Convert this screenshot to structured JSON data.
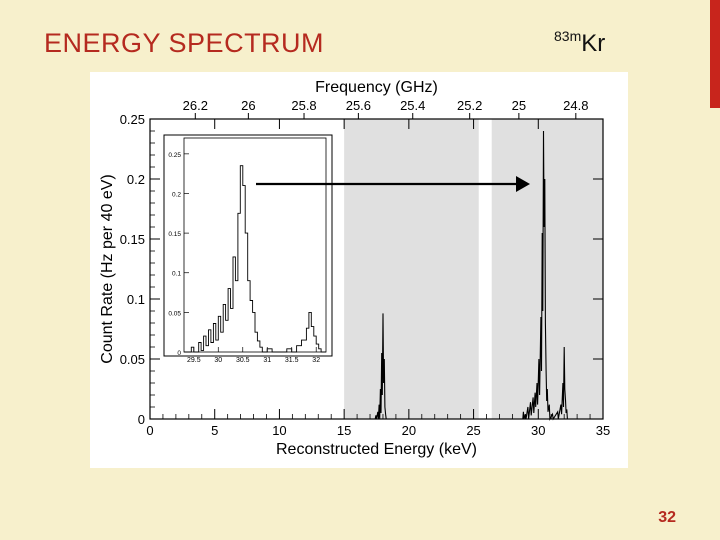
{
  "slide": {
    "title": "ENERGY SPECTRUM",
    "isotope_mass": "83m",
    "isotope_symbol": "Kr",
    "page_number": "32"
  },
  "colors": {
    "background": "#f7f0cc",
    "accent": "#c8251c",
    "title": "#b52a1f",
    "page_number": "#b52a1f",
    "shaded_band": "#e0e0e0",
    "plot_line": "#000000"
  },
  "chart_data": [
    {
      "type": "line",
      "title": "",
      "xlabel": "Reconstructed Energy (keV)",
      "ylabel": "Count Rate (Hz per 40 eV)",
      "top_axis_label": "Frequency (GHz)",
      "xlim": [
        0,
        35
      ],
      "ylim": [
        0,
        0.25
      ],
      "x_ticks": [
        0,
        5,
        10,
        15,
        20,
        25,
        30,
        35
      ],
      "y_ticks": [
        0,
        0.05,
        0.1,
        0.15,
        0.2,
        0.25
      ],
      "x_tick_labels": [
        "0",
        "5",
        "10",
        "15",
        "20",
        "25",
        "30",
        "35"
      ],
      "y_tick_labels": [
        "0",
        "0.05",
        "0.1",
        "0.15",
        "0.2",
        "0.25"
      ],
      "top_ticks": [
        {
          "label": "26.2",
          "energy": 3.5
        },
        {
          "label": "26",
          "energy": 7.6
        },
        {
          "label": "25.8",
          "energy": 11.9
        },
        {
          "label": "25.6",
          "energy": 16.1
        },
        {
          "label": "25.4",
          "energy": 20.3
        },
        {
          "label": "25.2",
          "energy": 24.7
        },
        {
          "label": "25",
          "energy": 28.5
        },
        {
          "label": "24.8",
          "energy": 32.9
        }
      ],
      "shaded_regions": [
        [
          15,
          25.4
        ],
        [
          26.4,
          35
        ]
      ],
      "series": [
        {
          "name": "spectrum",
          "points": [
            [
              17.4,
              0.0
            ],
            [
              17.45,
              0.003
            ],
            [
              17.5,
              0.0
            ],
            [
              17.6,
              0.006
            ],
            [
              17.65,
              0.0
            ],
            [
              17.7,
              0.012
            ],
            [
              17.75,
              0.0
            ],
            [
              17.8,
              0.025
            ],
            [
              17.85,
              0.005
            ],
            [
              17.9,
              0.055
            ],
            [
              17.95,
              0.02
            ],
            [
              18.0,
              0.088
            ],
            [
              18.05,
              0.03
            ],
            [
              18.1,
              0.05
            ],
            [
              18.15,
              0.01
            ],
            [
              18.2,
              0.004
            ],
            [
              18.25,
              0.0
            ],
            [
              28.8,
              0.0
            ],
            [
              28.85,
              0.006
            ],
            [
              28.9,
              0.0
            ],
            [
              29.0,
              0.004
            ],
            [
              29.05,
              0.0
            ],
            [
              29.2,
              0.01
            ],
            [
              29.25,
              0.0
            ],
            [
              29.4,
              0.014
            ],
            [
              29.45,
              0.003
            ],
            [
              29.6,
              0.018
            ],
            [
              29.65,
              0.005
            ],
            [
              29.75,
              0.022
            ],
            [
              29.8,
              0.01
            ],
            [
              29.9,
              0.03
            ],
            [
              29.95,
              0.012
            ],
            [
              30.05,
              0.05
            ],
            [
              30.1,
              0.02
            ],
            [
              30.2,
              0.085
            ],
            [
              30.25,
              0.04
            ],
            [
              30.3,
              0.155
            ],
            [
              30.35,
              0.09
            ],
            [
              30.4,
              0.24
            ],
            [
              30.45,
              0.16
            ],
            [
              30.5,
              0.2
            ],
            [
              30.55,
              0.08
            ],
            [
              30.6,
              0.04
            ],
            [
              30.65,
              0.015
            ],
            [
              30.7,
              0.025
            ],
            [
              30.75,
              0.006
            ],
            [
              30.85,
              0.012
            ],
            [
              30.9,
              0.0
            ],
            [
              31.1,
              0.004
            ],
            [
              31.15,
              0.0
            ],
            [
              31.5,
              0.006
            ],
            [
              31.55,
              0.0
            ],
            [
              31.75,
              0.012
            ],
            [
              31.8,
              0.004
            ],
            [
              31.9,
              0.03
            ],
            [
              31.95,
              0.01
            ],
            [
              32.0,
              0.06
            ],
            [
              32.05,
              0.025
            ],
            [
              32.1,
              0.016
            ],
            [
              32.15,
              0.005
            ],
            [
              32.2,
              0.008
            ],
            [
              32.25,
              0.0
            ]
          ]
        }
      ]
    },
    {
      "type": "line",
      "role": "inset",
      "xlim": [
        29.3,
        32.2
      ],
      "ylim": [
        0,
        0.27
      ],
      "x_ticks": [
        29.5,
        30,
        30.5,
        31,
        31.5,
        32
      ],
      "y_ticks": [
        0,
        0.05,
        0.1,
        0.15,
        0.2,
        0.25
      ],
      "x_tick_labels": [
        "29.5",
        "30",
        "30.5",
        "31",
        "31.5",
        "32"
      ],
      "y_tick_labels": [
        "0",
        "0.05",
        "0.1",
        "0.15",
        "0.2",
        "0.25"
      ],
      "series": [
        {
          "name": "zoom",
          "steps": [
            [
              29.3,
              0.0
            ],
            [
              29.45,
              0.006
            ],
            [
              29.5,
              0.0
            ],
            [
              29.6,
              0.012
            ],
            [
              29.65,
              0.002
            ],
            [
              29.7,
              0.02
            ],
            [
              29.75,
              0.008
            ],
            [
              29.8,
              0.028
            ],
            [
              29.85,
              0.012
            ],
            [
              29.9,
              0.036
            ],
            [
              29.95,
              0.015
            ],
            [
              30.0,
              0.045
            ],
            [
              30.05,
              0.025
            ],
            [
              30.1,
              0.06
            ],
            [
              30.15,
              0.04
            ],
            [
              30.2,
              0.08
            ],
            [
              30.25,
              0.055
            ],
            [
              30.3,
              0.12
            ],
            [
              30.35,
              0.09
            ],
            [
              30.4,
              0.175
            ],
            [
              30.45,
              0.235
            ],
            [
              30.5,
              0.21
            ],
            [
              30.55,
              0.15
            ],
            [
              30.6,
              0.09
            ],
            [
              30.65,
              0.065
            ],
            [
              30.7,
              0.05
            ],
            [
              30.75,
              0.025
            ],
            [
              30.8,
              0.014
            ],
            [
              30.85,
              0.006
            ],
            [
              30.9,
              0.0
            ],
            [
              31.0,
              0.004
            ],
            [
              31.1,
              0.0
            ],
            [
              31.4,
              0.004
            ],
            [
              31.5,
              0.0
            ],
            [
              31.6,
              0.008
            ],
            [
              31.7,
              0.015
            ],
            [
              31.8,
              0.03
            ],
            [
              31.85,
              0.05
            ],
            [
              31.9,
              0.032
            ],
            [
              31.95,
              0.02
            ],
            [
              32.0,
              0.01
            ],
            [
              32.05,
              0.004
            ],
            [
              32.1,
              0.0
            ],
            [
              32.2,
              0.0
            ]
          ]
        }
      ]
    }
  ]
}
